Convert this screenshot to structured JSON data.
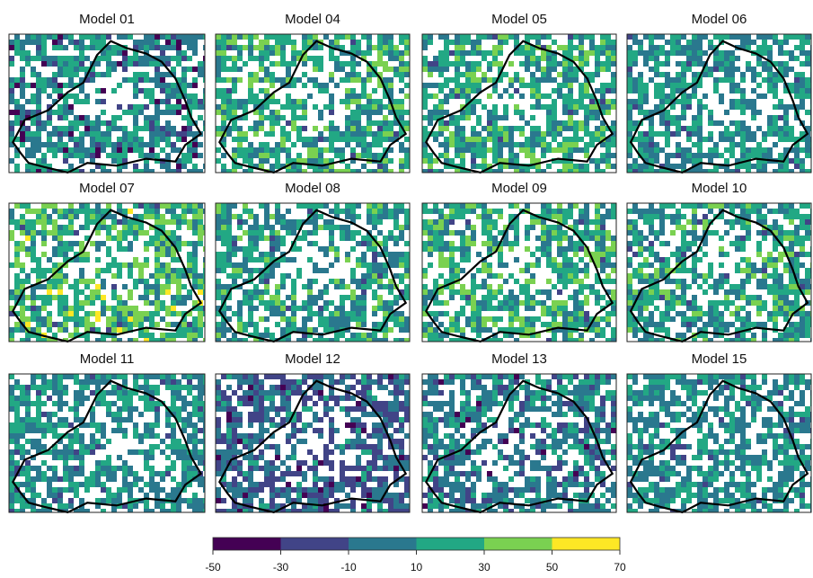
{
  "panels": [
    {
      "title": "Model 01"
    },
    {
      "title": "Model 04"
    },
    {
      "title": "Model 05"
    },
    {
      "title": "Model 06"
    },
    {
      "title": "Model 07"
    },
    {
      "title": "Model 08"
    },
    {
      "title": "Model 09"
    },
    {
      "title": "Model 10"
    },
    {
      "title": "Model 11"
    },
    {
      "title": "Model 12"
    },
    {
      "title": "Model 13"
    },
    {
      "title": "Model 15"
    }
  ],
  "colorbar": {
    "ticks": [
      -50,
      -30,
      -10,
      10,
      30,
      50,
      70
    ],
    "colors": [
      "#440154",
      "#414487",
      "#2a788e",
      "#22a884",
      "#7ad151",
      "#fde725"
    ]
  }
}
